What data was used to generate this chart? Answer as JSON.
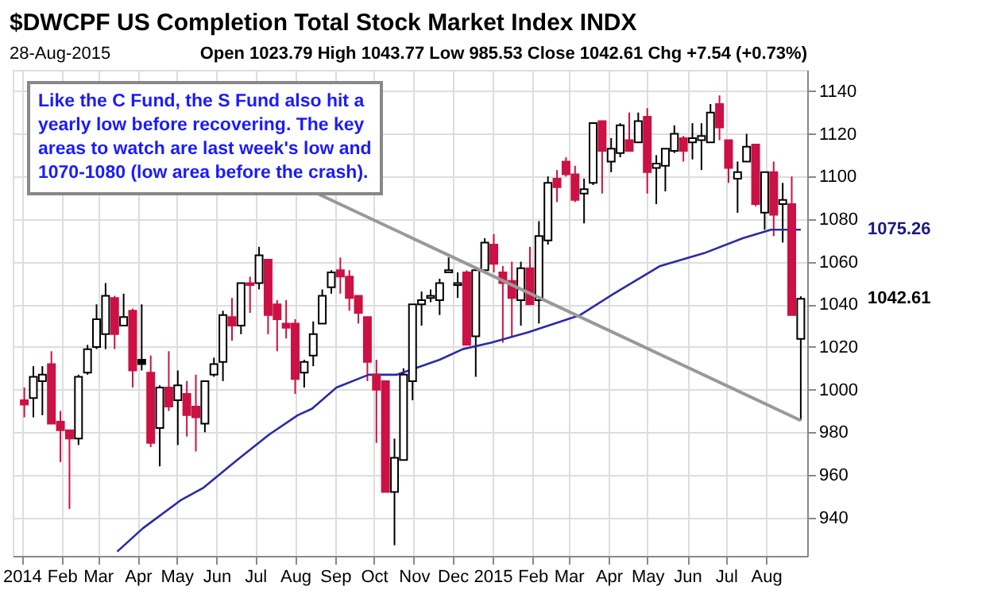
{
  "chart_data": {
    "type": "candlestick",
    "title": "$DWCPF US Completion Total Stock Market Index INDX",
    "annotations": [
      "28-Aug-2015",
      "Open 1023.79  High 1043.77  Low 985.53  Close 1042.61  Chg +7.54 (+0.73%)",
      {
        "text": "Like the C Fund, the S Fund also hit a yearly low before recovering. The key areas to watch are last week's low and 1070-1080 (low area before the crash).",
        "x": "2015-08-28",
        "y": 985.53
      },
      "1075.26",
      "1042.61"
    ],
    "x": [
      "2014-01-03",
      "2014-01-10",
      "2014-01-17",
      "2014-01-24",
      "2014-01-31",
      "2014-02-07",
      "2014-02-14",
      "2014-02-21",
      "2014-02-28",
      "2014-03-07",
      "2014-03-14",
      "2014-03-21",
      "2014-03-28",
      "2014-04-04",
      "2014-04-11",
      "2014-04-18",
      "2014-04-25",
      "2014-05-02",
      "2014-05-09",
      "2014-05-16",
      "2014-05-23",
      "2014-05-30",
      "2014-06-06",
      "2014-06-13",
      "2014-06-20",
      "2014-06-27",
      "2014-07-04",
      "2014-07-11",
      "2014-07-18",
      "2014-07-25",
      "2014-08-01",
      "2014-08-08",
      "2014-08-15",
      "2014-08-22",
      "2014-08-29",
      "2014-09-05",
      "2014-09-12",
      "2014-09-19",
      "2014-09-26",
      "2014-10-03",
      "2014-10-10",
      "2014-10-17",
      "2014-10-24",
      "2014-10-31",
      "2014-11-07",
      "2014-11-14",
      "2014-11-21",
      "2014-11-28",
      "2014-12-05",
      "2014-12-12",
      "2014-12-19",
      "2014-12-26",
      "2015-01-02",
      "2015-01-09",
      "2015-01-16",
      "2015-01-23",
      "2015-01-30",
      "2015-02-06",
      "2015-02-13",
      "2015-02-20",
      "2015-02-27",
      "2015-03-06",
      "2015-03-13",
      "2015-03-20",
      "2015-03-27",
      "2015-04-03",
      "2015-04-10",
      "2015-04-17",
      "2015-04-24",
      "2015-05-01",
      "2015-05-08",
      "2015-05-15",
      "2015-05-22",
      "2015-05-29",
      "2015-06-05",
      "2015-06-12",
      "2015-06-19",
      "2015-06-26",
      "2015-07-03",
      "2015-07-10",
      "2015-07-17",
      "2015-07-24",
      "2015-07-31",
      "2015-08-07",
      "2015-08-14",
      "2015-08-21",
      "2015-08-28"
    ],
    "ohlc": [
      [
        995,
        1001,
        987,
        993
      ],
      [
        996,
        1011,
        987,
        1006
      ],
      [
        1004,
        1011,
        988,
        1007
      ],
      [
        1012,
        1018,
        984,
        984
      ],
      [
        985,
        990,
        966,
        981
      ],
      [
        981,
        981,
        944,
        977
      ],
      [
        977,
        1007,
        974,
        1006
      ],
      [
        1008,
        1021,
        1007,
        1019
      ],
      [
        1020,
        1040,
        1019,
        1033
      ],
      [
        1026,
        1050,
        1019,
        1044
      ],
      [
        1043,
        1044,
        1019,
        1026
      ],
      [
        1030,
        1045,
        1030,
        1034
      ],
      [
        1037,
        1038,
        1001,
        1009
      ],
      [
        1014,
        1040,
        1009,
        1012
      ],
      [
        1008,
        1016,
        973,
        975
      ],
      [
        982,
        1002,
        964,
        1001
      ],
      [
        1001,
        1018,
        990,
        992
      ],
      [
        995,
        1009,
        974,
        1002
      ],
      [
        998,
        1004,
        978,
        988
      ],
      [
        992,
        1007,
        971,
        987
      ],
      [
        984,
        1004,
        980,
        1004
      ],
      [
        1007,
        1015,
        1006,
        1012
      ],
      [
        1013,
        1037,
        1004,
        1035
      ],
      [
        1034,
        1043,
        1023,
        1030
      ],
      [
        1030,
        1050,
        1026,
        1050
      ],
      [
        1050,
        1053,
        1036,
        1049
      ],
      [
        1050,
        1067,
        1047,
        1063
      ],
      [
        1061,
        1061,
        1026,
        1035
      ],
      [
        1040,
        1042,
        1018,
        1033
      ],
      [
        1031,
        1042,
        1024,
        1029
      ],
      [
        1031,
        1033,
        998,
        1005
      ],
      [
        1008,
        1014,
        1001,
        1013
      ],
      [
        1016,
        1032,
        1011,
        1026
      ],
      [
        1031,
        1047,
        1031,
        1044
      ],
      [
        1048,
        1056,
        1045,
        1055
      ],
      [
        1056,
        1062,
        1045,
        1053
      ],
      [
        1053,
        1056,
        1037,
        1043
      ],
      [
        1044,
        1044,
        1031,
        1036
      ],
      [
        1034,
        1034,
        1004,
        1013
      ],
      [
        1007,
        1014,
        975,
        1000
      ],
      [
        1004,
        1004,
        952,
        952
      ],
      [
        952,
        977,
        927,
        968
      ],
      [
        967,
        1010,
        967,
        1007
      ],
      [
        1004,
        1040,
        995,
        1040
      ],
      [
        1040,
        1046,
        1030,
        1042
      ],
      [
        1043,
        1047,
        1041,
        1044
      ],
      [
        1042,
        1052,
        1035,
        1050
      ],
      [
        1055,
        1062,
        1055,
        1056
      ],
      [
        1049,
        1055,
        1043,
        1050
      ],
      [
        1055,
        1056,
        1021,
        1021
      ],
      [
        1025,
        1057,
        1006,
        1056
      ],
      [
        1056,
        1071,
        1055,
        1069
      ],
      [
        1068,
        1073,
        1055,
        1059
      ],
      [
        1055,
        1058,
        1022,
        1050
      ],
      [
        1051,
        1060,
        1025,
        1043
      ],
      [
        1042,
        1060,
        1030,
        1057
      ],
      [
        1057,
        1067,
        1040,
        1040
      ],
      [
        1042,
        1079,
        1031,
        1072
      ],
      [
        1070,
        1100,
        1068,
        1097
      ],
      [
        1099,
        1103,
        1088,
        1095
      ],
      [
        1107,
        1109,
        1100,
        1101
      ],
      [
        1101,
        1105,
        1088,
        1089
      ],
      [
        1092,
        1099,
        1078,
        1094
      ],
      [
        1097,
        1125,
        1096,
        1125
      ],
      [
        1126,
        1126,
        1092,
        1112
      ],
      [
        1107,
        1118,
        1102,
        1113
      ],
      [
        1111,
        1125,
        1109,
        1124
      ],
      [
        1117,
        1130,
        1112,
        1112
      ],
      [
        1116,
        1130,
        1116,
        1126
      ],
      [
        1128,
        1132,
        1092,
        1102
      ],
      [
        1104,
        1110,
        1087,
        1106
      ],
      [
        1105,
        1113,
        1093,
        1113
      ],
      [
        1112,
        1124,
        1111,
        1120
      ],
      [
        1118,
        1119,
        1107,
        1112
      ],
      [
        1116,
        1125,
        1108,
        1118
      ],
      [
        1117,
        1125,
        1103,
        1119
      ],
      [
        1116,
        1134,
        1116,
        1130
      ],
      [
        1134,
        1138,
        1117,
        1123
      ],
      [
        1117,
        1117,
        1097,
        1104
      ],
      [
        1099,
        1107,
        1083,
        1102
      ],
      [
        1107,
        1120,
        1107,
        1114
      ],
      [
        1115,
        1115,
        1086,
        1087
      ],
      [
        1083,
        1102,
        1075,
        1102
      ],
      [
        1102,
        1107,
        1072,
        1082
      ],
      [
        1087,
        1097,
        1069,
        1089
      ],
      [
        1087,
        1100,
        1035,
        1035
      ],
      [
        1023.79,
        1043.77,
        985.53,
        1042.61
      ]
    ],
    "colors": [
      "#cc1144",
      "#ffffff",
      "#ffffff",
      "#cc1144",
      "#cc1144",
      "#cc1144",
      "#ffffff",
      "#ffffff",
      "#ffffff",
      "#ffffff",
      "#cc1144",
      "#ffffff",
      "#cc1144",
      "#000000",
      "#cc1144",
      "#ffffff",
      "#cc1144",
      "#ffffff",
      "#cc1144",
      "#cc1144",
      "#ffffff",
      "#ffffff",
      "#ffffff",
      "#cc1144",
      "#ffffff",
      "#cc1144",
      "#ffffff",
      "#cc1144",
      "#cc1144",
      "#cc1144",
      "#cc1144",
      "#ffffff",
      "#ffffff",
      "#ffffff",
      "#ffffff",
      "#cc1144",
      "#cc1144",
      "#cc1144",
      "#cc1144",
      "#cc1144",
      "#cc1144",
      "#ffffff",
      "#ffffff",
      "#ffffff",
      "#ffffff",
      "#ffffff",
      "#ffffff",
      "#ffffff",
      "#ffffff",
      "#cc1144",
      "#ffffff",
      "#ffffff",
      "#cc1144",
      "#cc1144",
      "#cc1144",
      "#ffffff",
      "#cc1144",
      "#ffffff",
      "#ffffff",
      "#cc1144",
      "#cc1144",
      "#cc1144",
      "#ffffff",
      "#ffffff",
      "#cc1144",
      "#ffffff",
      "#ffffff",
      "#cc1144",
      "#ffffff",
      "#cc1144",
      "#ffffff",
      "#ffffff",
      "#ffffff",
      "#cc1144",
      "#ffffff",
      "#ffffff",
      "#ffffff",
      "#cc1144",
      "#cc1144",
      "#ffffff",
      "#ffffff",
      "#cc1144",
      "#ffffff",
      "#cc1144",
      "#ffffff",
      "#cc1144",
      "#ffffff"
    ],
    "series": [
      {
        "type": "line",
        "color": "#2a2aa8",
        "x": [
          "2014-03-16",
          "2014-04-05",
          "2014-05-04",
          "2014-05-22",
          "2014-06-17",
          "2014-07-12",
          "2014-08-03",
          "2014-08-14",
          "2014-09-02",
          "2014-09-27",
          "2014-10-19",
          "2014-11-21",
          "2014-12-09",
          "2014-12-31",
          "2015-01-29",
          "2015-03-10",
          "2015-04-05",
          "2015-05-11",
          "2015-06-14",
          "2015-07-14",
          "2015-08-05",
          "2015-08-28"
        ],
        "values": [
          924,
          935,
          948,
          954,
          967,
          979,
          988,
          991,
          1001,
          1007,
          1007,
          1014,
          1019,
          1022,
          1027,
          1035,
          1045,
          1058,
          1064,
          1071,
          1075,
          1075
        ]
      }
    ],
    "xlim": [
      "2013-12-25",
      "2015-09-02"
    ],
    "xticks": [
      {
        "value": "2014-01-01",
        "label": "2014"
      },
      {
        "value": "2014-02-01",
        "label": "Feb"
      },
      {
        "value": "2014-03-01",
        "label": "Mar"
      },
      {
        "value": "2014-04-01",
        "label": "Apr"
      },
      {
        "value": "2014-05-01",
        "label": "May"
      },
      {
        "value": "2014-06-01",
        "label": "Jun"
      },
      {
        "value": "2014-07-01",
        "label": "Jul"
      },
      {
        "value": "2014-08-01",
        "label": "Aug"
      },
      {
        "value": "2014-09-01",
        "label": "Sep"
      },
      {
        "value": "2014-10-01",
        "label": "Oct"
      },
      {
        "value": "2014-11-01",
        "label": "Nov"
      },
      {
        "value": "2014-12-01",
        "label": "Dec"
      },
      {
        "value": "2015-01-01",
        "label": "2015"
      },
      {
        "value": "2015-02-01",
        "label": "Feb"
      },
      {
        "value": "2015-03-01",
        "label": "Mar"
      },
      {
        "value": "2015-04-01",
        "label": "Apr"
      },
      {
        "value": "2015-05-01",
        "label": "May"
      },
      {
        "value": "2015-06-01",
        "label": "Jun"
      },
      {
        "value": "2015-07-01",
        "label": "Jul"
      },
      {
        "value": "2015-08-01",
        "label": "Aug"
      }
    ],
    "ylim": [
      922,
      1150
    ],
    "yticks": [
      940,
      960,
      980,
      1000,
      1020,
      1040,
      1060,
      1080,
      1100,
      1120,
      1140
    ],
    "grid": true
  }
}
